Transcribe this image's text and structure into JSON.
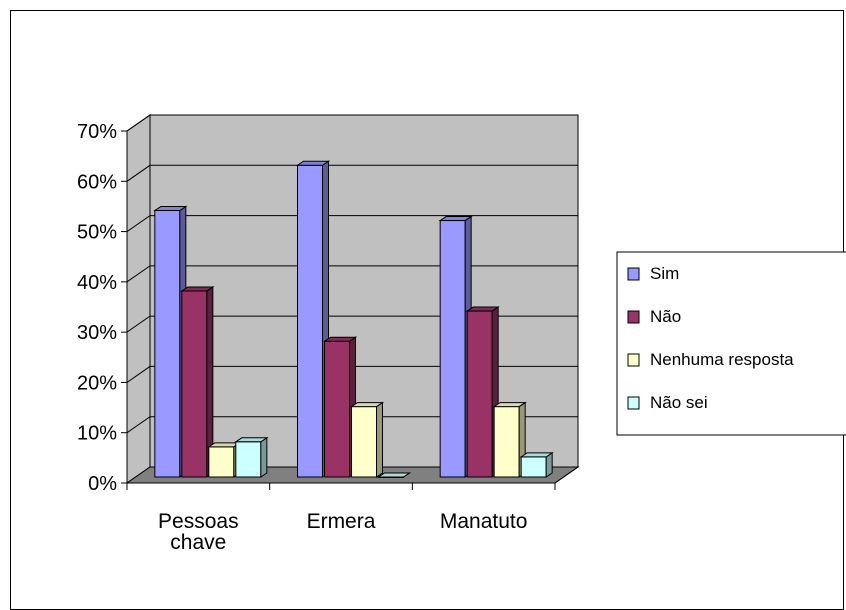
{
  "chart_data": {
    "type": "bar",
    "categories": [
      "Pessoas chave",
      "Ermera",
      "Manatuto"
    ],
    "category_lines": [
      [
        "Pessoas",
        "chave"
      ],
      [
        "Ermera"
      ],
      [
        "Manatuto"
      ]
    ],
    "series": [
      {
        "name": "Sim",
        "values": [
          53,
          62,
          51
        ],
        "color": "#9999ff"
      },
      {
        "name": "Não",
        "values": [
          37,
          27,
          33
        ],
        "color": "#993366"
      },
      {
        "name": "Nenhuma resposta",
        "values": [
          6,
          14,
          14
        ],
        "color": "#ffffcc"
      },
      {
        "name": "Não sei",
        "values": [
          7,
          0,
          4
        ],
        "color": "#ccffff"
      }
    ],
    "ylim": [
      0,
      70
    ],
    "yticks": [
      "0%",
      "10%",
      "20%",
      "30%",
      "40%",
      "50%",
      "60%",
      "70%"
    ],
    "grid": true,
    "legend": "right",
    "wall_color": "#c0c0c0",
    "floor_color": "#808080"
  }
}
